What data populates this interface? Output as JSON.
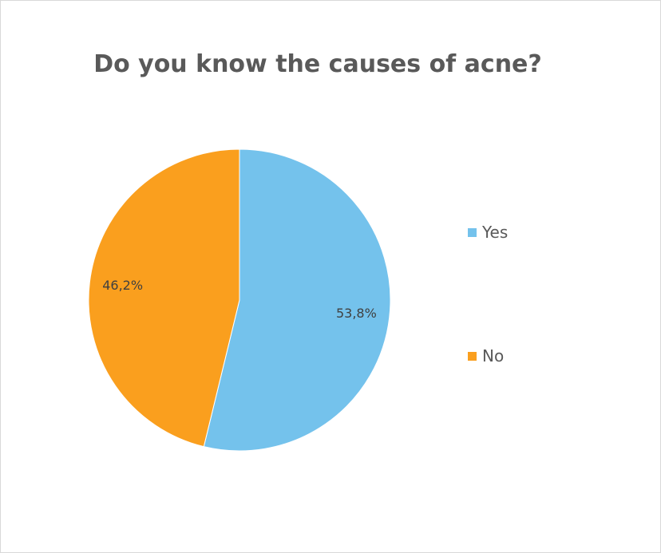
{
  "chart_data": {
    "type": "pie",
    "title": "Do you know the causes of acne?",
    "categories": [
      "Yes",
      "No"
    ],
    "values": [
      53.8,
      46.2
    ],
    "value_labels": [
      "53,8%",
      "46,2%"
    ],
    "colors": [
      "#74C2EC",
      "#FA9F1E"
    ],
    "start_angle_deg": 0,
    "direction": "clockwise",
    "legend_position": "right"
  }
}
